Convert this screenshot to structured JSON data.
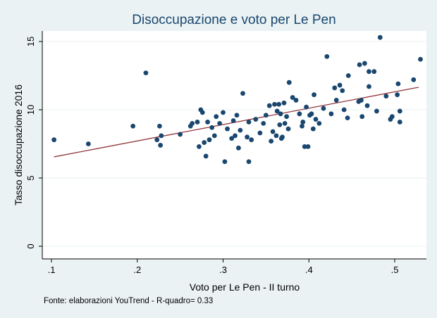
{
  "chart_data": {
    "type": "scatter",
    "title": "Disoccupazione e voto per Le Pen",
    "xlabel": "Voto per Le Pen - II turno",
    "ylabel": "Tasso disoccupazione 2016",
    "note": "Fonte: elaborazioni YouTrend - R-quadro= 0.33",
    "xlim": [
      0.1,
      0.53
    ],
    "ylim": [
      0,
      15.5
    ],
    "xticks": [
      {
        "value": 0.1,
        "label": ".1"
      },
      {
        "value": 0.2,
        "label": ".2"
      },
      {
        "value": 0.3,
        "label": ".3"
      },
      {
        "value": 0.4,
        "label": ".4"
      },
      {
        "value": 0.5,
        "label": ".5"
      }
    ],
    "yticks": [
      {
        "value": 0,
        "label": "0"
      },
      {
        "value": 5,
        "label": "5"
      },
      {
        "value": 10,
        "label": "10"
      },
      {
        "value": 15,
        "label": "15"
      }
    ],
    "grid": true,
    "legend": "none",
    "colors": {
      "background": "#eaf2f3",
      "plot_background": "#ffffff",
      "points": "#1a476f",
      "fit_line": "#90353b",
      "grid": "#eaf2f3",
      "title": "#1a476f"
    },
    "fit_line": {
      "x": [
        0.103,
        0.528
      ],
      "y": [
        6.55,
        11.65
      ]
    },
    "points": [
      {
        "x": 0.103,
        "y": 7.8
      },
      {
        "x": 0.143,
        "y": 7.5
      },
      {
        "x": 0.195,
        "y": 8.8
      },
      {
        "x": 0.21,
        "y": 12.7
      },
      {
        "x": 0.223,
        "y": 7.8
      },
      {
        "x": 0.226,
        "y": 8.8
      },
      {
        "x": 0.227,
        "y": 7.4
      },
      {
        "x": 0.228,
        "y": 8.1
      },
      {
        "x": 0.25,
        "y": 8.2
      },
      {
        "x": 0.262,
        "y": 8.8
      },
      {
        "x": 0.264,
        "y": 9.0
      },
      {
        "x": 0.27,
        "y": 9.1
      },
      {
        "x": 0.272,
        "y": 7.3
      },
      {
        "x": 0.274,
        "y": 10.0
      },
      {
        "x": 0.276,
        "y": 9.8
      },
      {
        "x": 0.278,
        "y": 7.6
      },
      {
        "x": 0.28,
        "y": 6.6
      },
      {
        "x": 0.282,
        "y": 9.1
      },
      {
        "x": 0.284,
        "y": 7.8
      },
      {
        "x": 0.287,
        "y": 8.7
      },
      {
        "x": 0.29,
        "y": 8.1
      },
      {
        "x": 0.292,
        "y": 9.5
      },
      {
        "x": 0.296,
        "y": 9.0
      },
      {
        "x": 0.3,
        "y": 9.8
      },
      {
        "x": 0.302,
        "y": 6.2
      },
      {
        "x": 0.305,
        "y": 8.6
      },
      {
        "x": 0.31,
        "y": 7.9
      },
      {
        "x": 0.312,
        "y": 9.2
      },
      {
        "x": 0.314,
        "y": 8.1
      },
      {
        "x": 0.316,
        "y": 9.6
      },
      {
        "x": 0.318,
        "y": 7.2
      },
      {
        "x": 0.32,
        "y": 8.5
      },
      {
        "x": 0.323,
        "y": 11.2
      },
      {
        "x": 0.328,
        "y": 8.0
      },
      {
        "x": 0.33,
        "y": 9.1
      },
      {
        "x": 0.33,
        "y": 6.2
      },
      {
        "x": 0.333,
        "y": 7.8
      },
      {
        "x": 0.338,
        "y": 9.3
      },
      {
        "x": 0.343,
        "y": 8.3
      },
      {
        "x": 0.347,
        "y": 9.0
      },
      {
        "x": 0.35,
        "y": 9.6
      },
      {
        "x": 0.354,
        "y": 10.3
      },
      {
        "x": 0.356,
        "y": 7.7
      },
      {
        "x": 0.358,
        "y": 8.4
      },
      {
        "x": 0.36,
        "y": 10.4
      },
      {
        "x": 0.362,
        "y": 8.1
      },
      {
        "x": 0.363,
        "y": 9.9
      },
      {
        "x": 0.365,
        "y": 10.4
      },
      {
        "x": 0.366,
        "y": 8.9
      },
      {
        "x": 0.367,
        "y": 9.7
      },
      {
        "x": 0.368,
        "y": 7.9
      },
      {
        "x": 0.369,
        "y": 8.0
      },
      {
        "x": 0.371,
        "y": 10.5
      },
      {
        "x": 0.372,
        "y": 9.0
      },
      {
        "x": 0.374,
        "y": 9.5
      },
      {
        "x": 0.376,
        "y": 8.6
      },
      {
        "x": 0.377,
        "y": 12.0
      },
      {
        "x": 0.381,
        "y": 10.9
      },
      {
        "x": 0.385,
        "y": 10.7
      },
      {
        "x": 0.389,
        "y": 9.7
      },
      {
        "x": 0.392,
        "y": 8.8
      },
      {
        "x": 0.393,
        "y": 9.1
      },
      {
        "x": 0.395,
        "y": 7.3
      },
      {
        "x": 0.397,
        "y": 10.2
      },
      {
        "x": 0.399,
        "y": 7.3
      },
      {
        "x": 0.401,
        "y": 9.6
      },
      {
        "x": 0.403,
        "y": 9.7
      },
      {
        "x": 0.405,
        "y": 8.6
      },
      {
        "x": 0.406,
        "y": 11.1
      },
      {
        "x": 0.408,
        "y": 9.3
      },
      {
        "x": 0.412,
        "y": 9.0
      },
      {
        "x": 0.417,
        "y": 10.1
      },
      {
        "x": 0.421,
        "y": 13.9
      },
      {
        "x": 0.426,
        "y": 9.7
      },
      {
        "x": 0.43,
        "y": 11.6
      },
      {
        "x": 0.432,
        "y": 10.7
      },
      {
        "x": 0.436,
        "y": 11.8
      },
      {
        "x": 0.439,
        "y": 11.4
      },
      {
        "x": 0.441,
        "y": 10.0
      },
      {
        "x": 0.445,
        "y": 9.4
      },
      {
        "x": 0.446,
        "y": 12.5
      },
      {
        "x": 0.458,
        "y": 10.6
      },
      {
        "x": 0.459,
        "y": 13.3
      },
      {
        "x": 0.461,
        "y": 10.7
      },
      {
        "x": 0.462,
        "y": 9.5
      },
      {
        "x": 0.465,
        "y": 13.4
      },
      {
        "x": 0.468,
        "y": 10.3
      },
      {
        "x": 0.47,
        "y": 11.7
      },
      {
        "x": 0.47,
        "y": 12.8
      },
      {
        "x": 0.476,
        "y": 12.8
      },
      {
        "x": 0.479,
        "y": 9.9
      },
      {
        "x": 0.483,
        "y": 15.3
      },
      {
        "x": 0.49,
        "y": 11.0
      },
      {
        "x": 0.495,
        "y": 9.3
      },
      {
        "x": 0.497,
        "y": 9.5
      },
      {
        "x": 0.503,
        "y": 11.1
      },
      {
        "x": 0.504,
        "y": 11.9
      },
      {
        "x": 0.506,
        "y": 9.9
      },
      {
        "x": 0.506,
        "y": 9.1
      },
      {
        "x": 0.522,
        "y": 12.2
      },
      {
        "x": 0.53,
        "y": 13.7
      }
    ]
  }
}
